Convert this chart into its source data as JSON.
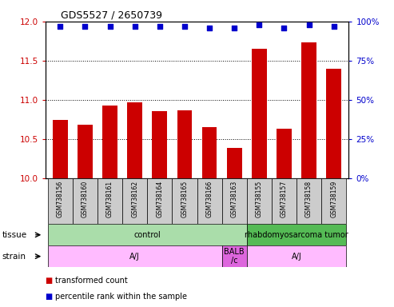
{
  "title": "GDS5527 / 2650739",
  "samples": [
    "GSM738156",
    "GSM738160",
    "GSM738161",
    "GSM738162",
    "GSM738164",
    "GSM738165",
    "GSM738166",
    "GSM738163",
    "GSM738155",
    "GSM738157",
    "GSM738158",
    "GSM738159"
  ],
  "transformed_count": [
    10.74,
    10.68,
    10.93,
    10.97,
    10.86,
    10.87,
    10.65,
    10.39,
    11.65,
    10.63,
    11.73,
    11.4
  ],
  "percentile_rank": [
    97,
    97,
    97,
    97,
    97,
    97,
    96,
    96,
    98,
    96,
    98,
    97
  ],
  "ylim_left": [
    10,
    12
  ],
  "ylim_right": [
    0,
    100
  ],
  "yticks_left": [
    10,
    10.5,
    11,
    11.5,
    12
  ],
  "yticks_right": [
    0,
    25,
    50,
    75,
    100
  ],
  "bar_color": "#cc0000",
  "dot_color": "#0000cc",
  "tissue_groups": [
    {
      "label": "control",
      "start": 0,
      "end": 8,
      "color": "#aaddaa"
    },
    {
      "label": "rhabdomyosarcoma tumor",
      "start": 8,
      "end": 12,
      "color": "#55bb55"
    }
  ],
  "strain_groups": [
    {
      "label": "A/J",
      "start": 0,
      "end": 7,
      "color": "#ffbbff"
    },
    {
      "label": "BALB\n/c",
      "start": 7,
      "end": 8,
      "color": "#dd66dd"
    },
    {
      "label": "A/J",
      "start": 8,
      "end": 12,
      "color": "#ffbbff"
    }
  ],
  "legend_items": [
    {
      "label": "transformed count",
      "color": "#cc0000"
    },
    {
      "label": "percentile rank within the sample",
      "color": "#0000cc"
    }
  ],
  "ylabel_left_color": "#cc0000",
  "ylabel_right_color": "#0000cc",
  "sample_box_color": "#cccccc",
  "tissue_label": "tissue",
  "strain_label": "strain"
}
